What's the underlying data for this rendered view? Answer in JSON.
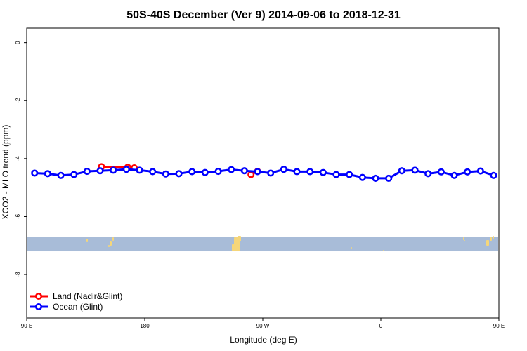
{
  "chart_data": {
    "type": "line",
    "title": "50S-40S December (Ver 9)   2014-09-06 to 2018-12-31",
    "xlabel": "Longitude (deg E)",
    "ylabel": "XCO2 - MLO trend (ppm)",
    "xlim": [
      90,
      450
    ],
    "ylim": [
      -9.5,
      0.5
    ],
    "x_ticks": [
      {
        "value": 90,
        "label": "90 E"
      },
      {
        "value": 180,
        "label": "180"
      },
      {
        "value": 270,
        "label": "90 W"
      },
      {
        "value": 360,
        "label": "0"
      },
      {
        "value": 450,
        "label": "90 E"
      },
      {
        "value": 540,
        "label": "180"
      }
    ],
    "y_ticks": [
      {
        "value": 0,
        "label": "0"
      },
      {
        "value": -2,
        "label": "-2"
      },
      {
        "value": -4,
        "label": "-4"
      },
      {
        "value": -6,
        "label": "-6"
      },
      {
        "value": -8,
        "label": "-8"
      }
    ],
    "grid": false,
    "legend": {
      "position": "bottom-left"
    },
    "map_strip": {
      "ymin": -7.2,
      "ymax": -6.7,
      "ocean_color": "#a8bcd8",
      "land_color": "#f5d67a"
    },
    "series": [
      {
        "name": "Land (Nadir&Glint)",
        "color": "#ff0000",
        "segments": [
          {
            "x": [
              147,
              167,
              172
            ],
            "y": [
              -4.28,
              -4.3,
              -4.32
            ]
          },
          {
            "x": [
              261,
              266
            ],
            "y": [
              -4.55,
              -4.44
            ]
          },
          {
            "x": [
              505
            ],
            "y": [
              -4.29
            ]
          },
          {
            "x": [
              529,
              534
            ],
            "y": [
              -4.3,
              -4.33
            ]
          }
        ]
      },
      {
        "name": "Ocean (Glint)",
        "color": "#0000ff",
        "segments": [
          {
            "x": [
              96,
              106,
              116,
              126,
              136,
              146,
              156,
              166,
              176,
              186,
              196,
              206,
              216,
              226,
              236,
              246,
              256,
              266,
              276,
              286,
              296,
              306,
              316,
              326,
              336,
              346,
              356,
              366,
              376,
              386,
              396,
              406,
              416,
              426,
              436,
              446,
              456,
              466,
              476,
              486,
              496,
              506,
              516,
              526,
              536
            ],
            "y": [
              -4.5,
              -4.52,
              -4.58,
              -4.55,
              -4.44,
              -4.42,
              -4.4,
              -4.37,
              -4.4,
              -4.45,
              -4.53,
              -4.52,
              -4.45,
              -4.48,
              -4.44,
              -4.38,
              -4.42,
              -4.45,
              -4.5,
              -4.37,
              -4.45,
              -4.45,
              -4.48,
              -4.55,
              -4.55,
              -4.65,
              -4.68,
              -4.68,
              -4.42,
              -4.4,
              -4.52,
              -4.46,
              -4.58,
              -4.46,
              -4.43,
              -4.58,
              -4.5,
              -4.52,
              -4.6,
              -4.55,
              -4.44,
              -4.44,
              -4.44,
              -4.39,
              -4.42
            ]
          }
        ]
      }
    ]
  }
}
